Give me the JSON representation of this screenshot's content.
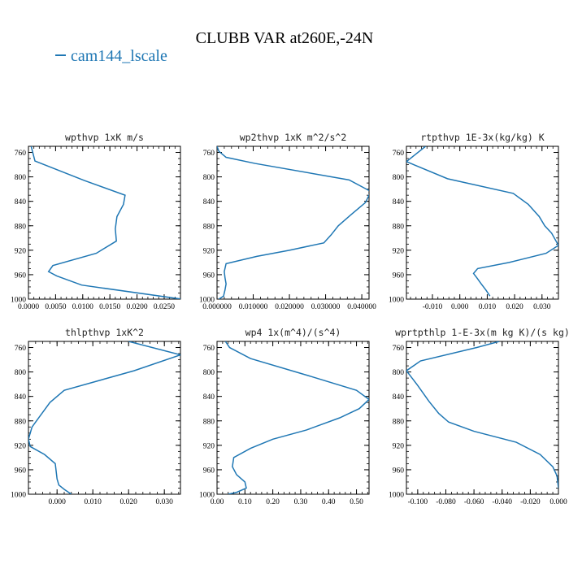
{
  "title": "CLUBB VAR at260E,-24N",
  "legend": {
    "label": "cam144_lscale",
    "color": "#1f77b4"
  },
  "chart_data": [
    {
      "type": "line",
      "title": "wpthvp  1xK m/s",
      "xlim": [
        0.0,
        0.028
      ],
      "ylim": [
        1000,
        750
      ],
      "xticks": [
        0.0,
        0.005,
        0.01,
        0.015,
        0.02,
        0.025
      ],
      "xtick_labels": [
        "0.0000",
        "0.0050",
        "0.0100",
        "0.0150",
        "0.0200",
        "0.0250"
      ],
      "yticks": [
        760,
        800,
        840,
        880,
        920,
        960,
        1000
      ],
      "ytick_labels": [
        "760",
        "800",
        "840",
        "880",
        "920",
        "960",
        "1000"
      ],
      "series": [
        {
          "x": [
            0.0005,
            0.0012,
            0.0103,
            0.0178,
            0.0175,
            0.0163,
            0.016,
            0.0162,
            0.0125,
            0.0045,
            0.0037,
            0.0052,
            0.0098,
            0.0282
          ],
          "y": [
            750,
            774,
            806,
            830,
            845,
            865,
            885,
            905,
            925,
            945,
            955,
            962,
            977,
            1000
          ]
        }
      ]
    },
    {
      "type": "line",
      "title": "wp2thvp  1xK m^2/s^2",
      "xlim": [
        0.0,
        0.042
      ],
      "ylim": [
        1000,
        750
      ],
      "xticks": [
        0.0,
        0.01,
        0.02,
        0.03,
        0.04
      ],
      "xtick_labels": [
        "0.000000",
        "0.010000",
        "0.020000",
        "0.030000",
        "0.040000"
      ],
      "yticks": [
        760,
        800,
        840,
        880,
        920,
        960,
        1000
      ],
      "ytick_labels": [
        "760",
        "800",
        "840",
        "880",
        "920",
        "960",
        "1000"
      ],
      "series": [
        {
          "x": [
            0.0,
            0.0005,
            0.0025,
            0.0105,
            0.0365,
            0.0425,
            0.041,
            0.037,
            0.0335,
            0.0315,
            0.0295,
            0.02,
            0.011,
            0.0025,
            0.002,
            0.0022,
            0.0025,
            0.0022,
            0.0018,
            0.0005
          ],
          "y": [
            750,
            758,
            768,
            778,
            805,
            824,
            842,
            862,
            880,
            895,
            908,
            920,
            930,
            942,
            955,
            965,
            975,
            985,
            995,
            1000
          ]
        }
      ]
    },
    {
      "type": "line",
      "title": "rtpthvp  1E-3x(kg/kg) K",
      "xlim": [
        -0.0195,
        0.036
      ],
      "ylim": [
        1000,
        750
      ],
      "xticks": [
        -0.01,
        0.0,
        0.01,
        0.02,
        0.03
      ],
      "xtick_labels": [
        "-0.010",
        "0.000",
        "0.010",
        "0.020",
        "0.030"
      ],
      "yticks": [
        760,
        800,
        840,
        880,
        920,
        960,
        1000
      ],
      "ytick_labels": [
        "760",
        "800",
        "840",
        "880",
        "920",
        "960",
        "1000"
      ],
      "series": [
        {
          "x": [
            -0.0125,
            -0.0195,
            -0.0045,
            0.0195,
            0.025,
            0.029,
            0.031,
            0.0335,
            0.036,
            0.0315,
            0.018,
            0.0065,
            0.005,
            0.0062,
            0.0078,
            0.0095,
            0.011
          ],
          "y": [
            750,
            775,
            803,
            827,
            845,
            865,
            880,
            892,
            912,
            925,
            940,
            950,
            958,
            965,
            975,
            985,
            995
          ]
        }
      ]
    },
    {
      "type": "line",
      "title": "thlpthvp  1xK^2",
      "xlim": [
        -0.008,
        0.0345
      ],
      "ylim": [
        1000,
        750
      ],
      "xticks": [
        0.0,
        0.01,
        0.02,
        0.03
      ],
      "xtick_labels": [
        "0.000",
        "0.010",
        "0.020",
        "0.030"
      ],
      "yticks": [
        760,
        800,
        840,
        880,
        920,
        960,
        1000
      ],
      "ytick_labels": [
        "760",
        "800",
        "840",
        "880",
        "920",
        "960",
        "1000"
      ],
      "series": [
        {
          "x": [
            0.02,
            0.0345,
            0.0215,
            0.002,
            -0.002,
            -0.0045,
            -0.007,
            -0.008,
            -0.0075,
            -0.0035,
            -0.0005,
            -0.0002,
            0.0,
            0.0005,
            0.002,
            0.004
          ],
          "y": [
            750,
            772,
            798,
            830,
            850,
            870,
            890,
            910,
            922,
            935,
            950,
            965,
            975,
            985,
            992,
            1000
          ]
        }
      ]
    },
    {
      "type": "line",
      "title": "wp4  1x(m^4)/(s^4)",
      "xlim": [
        0.0,
        0.545
      ],
      "ylim": [
        1000,
        750
      ],
      "xticks": [
        0.0,
        0.1,
        0.2,
        0.3,
        0.4,
        0.5
      ],
      "xtick_labels": [
        "0.00",
        "0.10",
        "0.20",
        "0.30",
        "0.40",
        "0.50"
      ],
      "yticks": [
        760,
        800,
        840,
        880,
        920,
        960,
        1000
      ],
      "ytick_labels": [
        "760",
        "800",
        "840",
        "880",
        "920",
        "960",
        "1000"
      ],
      "series": [
        {
          "x": [
            0.03,
            0.045,
            0.12,
            0.32,
            0.5,
            0.545,
            0.51,
            0.44,
            0.32,
            0.2,
            0.12,
            0.06,
            0.055,
            0.07,
            0.1,
            0.105,
            0.07,
            0.04
          ],
          "y": [
            750,
            760,
            778,
            805,
            830,
            845,
            860,
            875,
            895,
            910,
            925,
            940,
            955,
            968,
            980,
            990,
            997,
            1000
          ]
        }
      ]
    },
    {
      "type": "line",
      "title": "wprtpthlp  1-E-3x(m kg K)/(s kg)",
      "xlim": [
        -0.108,
        0.0
      ],
      "ylim": [
        1000,
        750
      ],
      "xticks": [
        -0.1,
        -0.08,
        -0.06,
        -0.04,
        -0.02,
        0.0
      ],
      "xtick_labels": [
        "-0.100",
        "-0.080",
        "-0.060",
        "-0.040",
        "-0.020",
        "0.000"
      ],
      "yticks": [
        760,
        800,
        840,
        880,
        920,
        960,
        1000
      ],
      "ytick_labels": [
        "760",
        "800",
        "840",
        "880",
        "920",
        "960",
        "1000"
      ],
      "series": [
        {
          "x": [
            -0.042,
            -0.058,
            -0.098,
            -0.108,
            -0.1,
            -0.092,
            -0.085,
            -0.078,
            -0.06,
            -0.03,
            -0.013,
            -0.004,
            -0.001,
            0.0
          ],
          "y": [
            750,
            760,
            782,
            798,
            822,
            848,
            868,
            882,
            897,
            915,
            935,
            955,
            970,
            990
          ]
        }
      ]
    }
  ]
}
